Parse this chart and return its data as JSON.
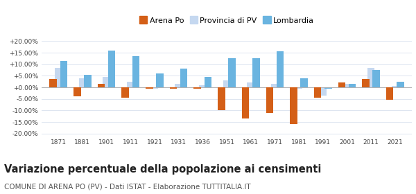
{
  "years": [
    1871,
    1881,
    1901,
    1911,
    1921,
    1931,
    1936,
    1951,
    1961,
    1971,
    1981,
    1991,
    2001,
    2011,
    2021
  ],
  "arena_po": [
    3.5,
    -4.0,
    1.5,
    -4.5,
    -0.5,
    -0.5,
    -0.5,
    -10.0,
    -13.5,
    -11.0,
    -16.0,
    -4.5,
    2.0,
    3.5,
    -5.5
  ],
  "provincia_pv": [
    8.5,
    4.0,
    4.5,
    2.5,
    -0.5,
    1.5,
    1.0,
    3.0,
    2.0,
    1.5,
    -0.5,
    -3.5,
    1.5,
    8.5,
    0.5
  ],
  "lombardia": [
    11.5,
    5.5,
    16.0,
    13.5,
    6.0,
    8.0,
    4.5,
    12.5,
    12.5,
    15.5,
    4.0,
    -0.5,
    1.5,
    7.5,
    2.5
  ],
  "arena_po_color": "#d45f17",
  "provincia_pv_color": "#c5d8f0",
  "lombardia_color": "#6ab4e0",
  "title": "Variazione percentuale della popolazione ai censimenti",
  "subtitle": "COMUNE DI ARENA PO (PV) - Dati ISTAT - Elaborazione TUTTITALIA.IT",
  "ylim": [
    -21,
    21
  ],
  "yticks": [
    -20,
    -15,
    -10,
    -5,
    0,
    5,
    10,
    15,
    20
  ],
  "background_color": "#ffffff",
  "grid_color": "#dde5f0",
  "title_fontsize": 10.5,
  "subtitle_fontsize": 7.5
}
